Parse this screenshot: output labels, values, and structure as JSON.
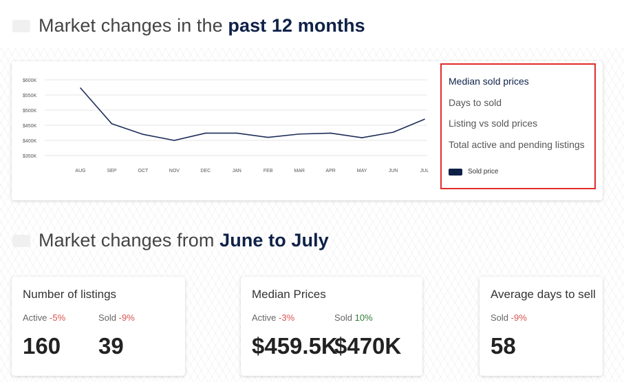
{
  "sections": {
    "past": {
      "title_prefix": "Market changes in the ",
      "title_bold": "past 12 months"
    },
    "recent": {
      "title_prefix": "Market changes from ",
      "title_bold": "June to July"
    }
  },
  "legend": {
    "items": [
      {
        "label": "Median sold prices",
        "active": true
      },
      {
        "label": "Days to sold",
        "active": false
      },
      {
        "label": "Listing vs sold prices",
        "active": false
      },
      {
        "label": "Total active and pending listings",
        "active": false
      }
    ],
    "series_label": "Sold price"
  },
  "chart_data": {
    "type": "line",
    "categories": [
      "AUG",
      "SEP",
      "OCT",
      "NOV",
      "DEC",
      "JAN",
      "FEB",
      "MAR",
      "APR",
      "MAY",
      "JUN",
      "JUL"
    ],
    "series": [
      {
        "name": "Sold price",
        "values": [
          573000,
          455000,
          420000,
          400000,
          424000,
          424000,
          410000,
          421000,
          424000,
          409000,
          427000,
          470000
        ]
      }
    ],
    "y_ticks": [
      "$350K",
      "$400K",
      "$450K",
      "$500K",
      "$550K",
      "$600K"
    ],
    "ylim": [
      350000,
      600000
    ],
    "grid": true,
    "color": "#1b2c57"
  },
  "cards": {
    "listings": {
      "title": "Number of listings",
      "m1_label": "Active",
      "m1_change": "-5%",
      "m2_label": "Sold",
      "m2_change": "-9%",
      "v1": "160",
      "v2": "39"
    },
    "prices": {
      "title": "Median Prices",
      "m1_label": "Active",
      "m1_change": "-3%",
      "m2_label": "Sold",
      "m2_change": "10%",
      "v1": "$459.5K",
      "v2": "$470K"
    },
    "days": {
      "title": "Average days to sell",
      "m1_label": "Sold",
      "m1_change": "-9%",
      "v1": "58"
    }
  },
  "colors": {
    "accent": "#0f2147",
    "negative": "#d9534f",
    "positive": "#2e7d32",
    "highlight_border": "#e22a2a"
  }
}
